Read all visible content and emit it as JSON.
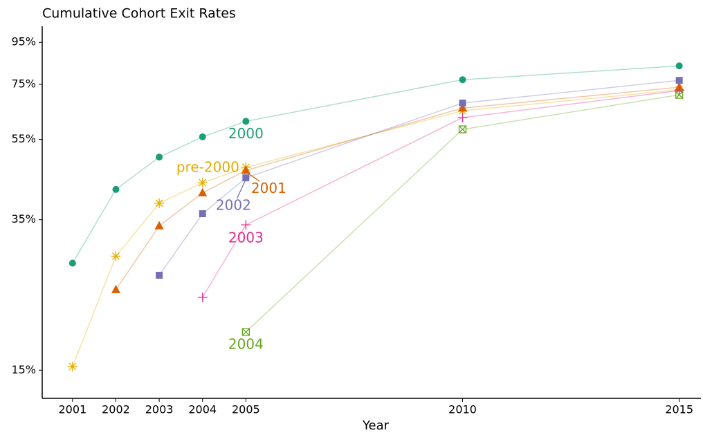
{
  "chart_data": {
    "type": "line",
    "title": "Cumulative Cohort Exit Rates",
    "x_label": "Year",
    "log_y": true,
    "xlim": [
      2000.3,
      2015.5
    ],
    "xticks": [
      2001,
      2002,
      2003,
      2004,
      2005,
      2010,
      2015
    ],
    "ylim": [
      12.8,
      104
    ],
    "yticks": [
      {
        "value": 15,
        "label": "15%"
      },
      {
        "value": 35,
        "label": "35%"
      },
      {
        "value": 55,
        "label": "55%"
      },
      {
        "value": 75,
        "label": "75%"
      },
      {
        "value": 95,
        "label": "95%"
      }
    ],
    "series": [
      {
        "name": "pre-2000",
        "color": "#e6ab02",
        "marker": "asterisk",
        "x": [
          2001,
          2002,
          2003,
          2004,
          2005,
          2010,
          2015
        ],
        "values": [
          15.3,
          28.5,
          38.4,
          43.1,
          47.0,
          64.6,
          72.7
        ]
      },
      {
        "name": "2000",
        "color": "#1b9e77",
        "marker": "circle",
        "x": [
          2001,
          2002,
          2003,
          2004,
          2005,
          2010,
          2015
        ],
        "values": [
          27.4,
          41.5,
          49.8,
          55.8,
          60.9,
          77.0,
          83.2
        ]
      },
      {
        "name": "2001",
        "color": "#d95f02",
        "marker": "triangle",
        "x": [
          2002,
          2003,
          2004,
          2005,
          2010,
          2015
        ],
        "values": [
          23.6,
          33.8,
          40.7,
          46.2,
          65.6,
          73.8
        ]
      },
      {
        "name": "2002",
        "color": "#7570b3",
        "marker": "square",
        "x": [
          2003,
          2004,
          2005,
          2010,
          2015
        ],
        "values": [
          25.6,
          36.2,
          44.3,
          67.5,
          76.7
        ]
      },
      {
        "name": "2003",
        "color": "#e7298a",
        "marker": "plus",
        "x": [
          2004,
          2005,
          2010,
          2015
        ],
        "values": [
          22.6,
          34.0,
          62.2,
          72.4
        ]
      },
      {
        "name": "2004",
        "color": "#66a61e",
        "marker": "boxx",
        "x": [
          2005,
          2010,
          2015
        ],
        "values": [
          18.6,
          58.2,
          70.7
        ]
      }
    ]
  }
}
